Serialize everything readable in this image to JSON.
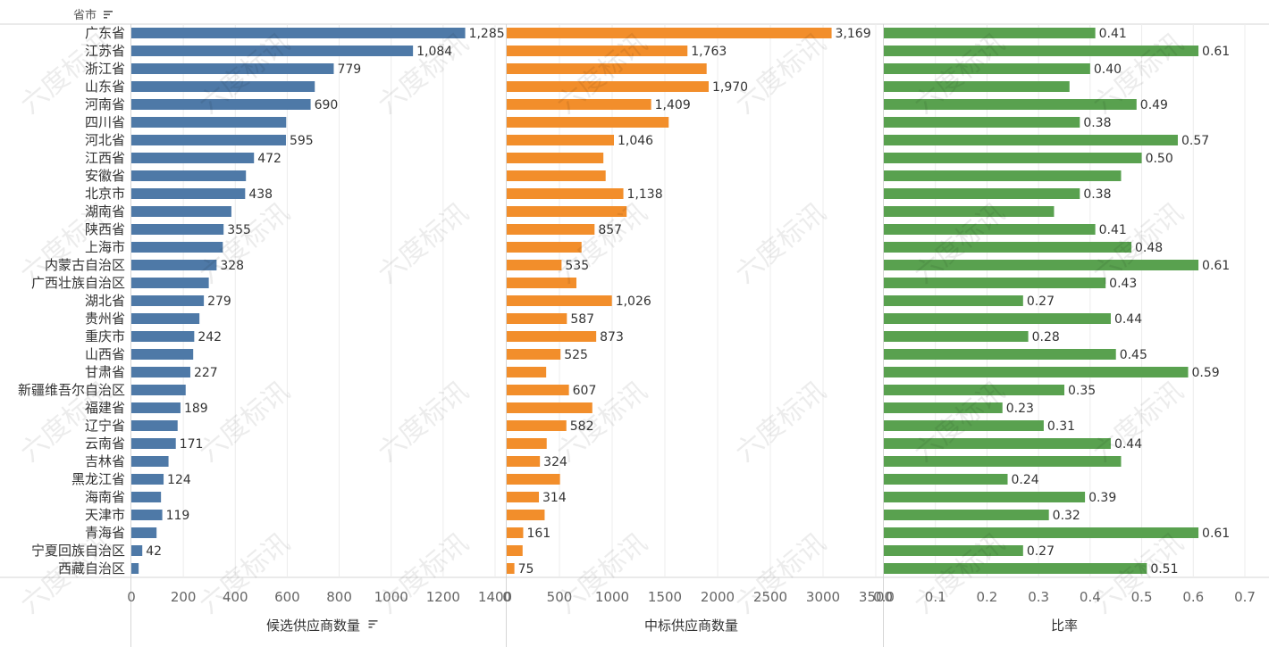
{
  "header": {
    "row_field_label": "省市",
    "sort_icon": "sort-descending-icon"
  },
  "watermark_text": "六度标讯",
  "colors": {
    "panel_1": "#4e79a7",
    "panel_2": "#f28e2b",
    "panel_3": "#59a14f"
  },
  "chart_data": [
    {
      "type": "bar",
      "orientation": "horizontal",
      "panel": "候选供应商数量",
      "xlabel": "候选供应商数量",
      "xlabel_has_sort_icon": true,
      "xlim": [
        0,
        1400
      ],
      "ticks": [
        "0",
        "200",
        "400",
        "600",
        "800",
        "1000",
        "1200",
        "1400"
      ],
      "categories": [
        "广东省",
        "江苏省",
        "浙江省",
        "山东省",
        "河南省",
        "四川省",
        "河北省",
        "江西省",
        "安徽省",
        "北京市",
        "湖南省",
        "陕西省",
        "上海市",
        "内蒙古自治区",
        "广西壮族自治区",
        "湖北省",
        "贵州省",
        "重庆市",
        "山西省",
        "甘肃省",
        "新疆维吾尔自治区",
        "福建省",
        "辽宁省",
        "云南省",
        "吉林省",
        "黑龙江省",
        "海南省",
        "天津市",
        "青海省",
        "宁夏回族自治区",
        "西藏自治区"
      ],
      "values": [
        1285,
        1084,
        779,
        706,
        690,
        596,
        595,
        472,
        441,
        438,
        385,
        355,
        352,
        328,
        298,
        279,
        262,
        242,
        238,
        227,
        209,
        189,
        178,
        171,
        143,
        124,
        114,
        119,
        97,
        42,
        28
      ],
      "data_labels": [
        "1,285",
        "1,084",
        "779",
        "",
        "690",
        "",
        "595",
        "472",
        "",
        "438",
        "",
        "355",
        "",
        "328",
        "",
        "279",
        "",
        "242",
        "",
        "227",
        "",
        "189",
        "",
        "171",
        "",
        "124",
        "",
        "119",
        "",
        "42",
        ""
      ]
    },
    {
      "type": "bar",
      "orientation": "horizontal",
      "panel": "中标供应商数量",
      "xlabel": "中标供应商数量",
      "xlim": [
        0,
        3600
      ],
      "ticks": [
        "0",
        "500",
        "1000",
        "1500",
        "2000",
        "2500",
        "3000",
        "3500"
      ],
      "categories": [
        "广东省",
        "江苏省",
        "浙江省",
        "山东省",
        "河南省",
        "四川省",
        "河北省",
        "江西省",
        "安徽省",
        "北京市",
        "湖南省",
        "陕西省",
        "上海市",
        "内蒙古自治区",
        "广西壮族自治区",
        "湖北省",
        "贵州省",
        "重庆市",
        "山西省",
        "甘肃省",
        "新疆维吾尔自治区",
        "福建省",
        "辽宁省",
        "云南省",
        "吉林省",
        "黑龙江省",
        "海南省",
        "天津市",
        "青海省",
        "宁夏回族自治区",
        "西藏自治区"
      ],
      "values": [
        3169,
        1763,
        1950,
        1970,
        1409,
        1580,
        1046,
        943,
        965,
        1138,
        1170,
        857,
        730,
        535,
        680,
        1026,
        587,
        873,
        525,
        385,
        607,
        835,
        582,
        390,
        324,
        520,
        314,
        370,
        161,
        155,
        75
      ],
      "data_labels": [
        "3,169",
        "1,763",
        "",
        "1,970",
        "1,409",
        "",
        "1,046",
        "",
        "",
        "1,138",
        "",
        "857",
        "",
        "535",
        "",
        "1,026",
        "587",
        "873",
        "525",
        "",
        "607",
        "",
        "582",
        "",
        "324",
        "",
        "314",
        "",
        "161",
        "",
        "75"
      ]
    },
    {
      "type": "bar",
      "orientation": "horizontal",
      "panel": "比率",
      "xlabel": "比率",
      "xlim": [
        0,
        0.7
      ],
      "ticks": [
        "0.0",
        "0.1",
        "0.2",
        "0.3",
        "0.4",
        "0.5",
        "0.6",
        "0.7"
      ],
      "categories": [
        "广东省",
        "江苏省",
        "浙江省",
        "山东省",
        "河南省",
        "四川省",
        "河北省",
        "江西省",
        "安徽省",
        "北京市",
        "湖南省",
        "陕西省",
        "上海市",
        "内蒙古自治区",
        "广西壮族自治区",
        "湖北省",
        "贵州省",
        "重庆市",
        "山西省",
        "甘肃省",
        "新疆维吾尔自治区",
        "福建省",
        "辽宁省",
        "云南省",
        "吉林省",
        "黑龙江省",
        "海南省",
        "天津市",
        "青海省",
        "宁夏回族自治区",
        "西藏自治区"
      ],
      "values": [
        0.41,
        0.61,
        0.4,
        0.36,
        0.49,
        0.38,
        0.57,
        0.5,
        0.46,
        0.38,
        0.33,
        0.41,
        0.48,
        0.61,
        0.43,
        0.27,
        0.44,
        0.28,
        0.45,
        0.59,
        0.35,
        0.23,
        0.31,
        0.44,
        0.46,
        0.24,
        0.39,
        0.32,
        0.61,
        0.27,
        0.51
      ],
      "data_labels": [
        "0.41",
        "0.61",
        "0.40",
        "",
        "0.49",
        "0.38",
        "0.57",
        "0.50",
        "",
        "0.38",
        "",
        "0.41",
        "0.48",
        "0.61",
        "0.43",
        "0.27",
        "0.44",
        "0.28",
        "0.45",
        "0.59",
        "0.35",
        "0.23",
        "0.31",
        "0.44",
        "",
        "0.24",
        "0.39",
        "0.32",
        "0.61",
        "0.27",
        "0.51"
      ]
    }
  ]
}
